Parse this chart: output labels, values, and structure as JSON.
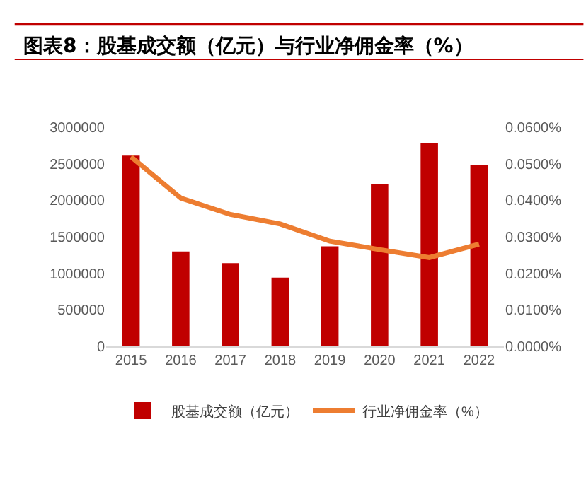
{
  "chart_data": {
    "type": "bar",
    "title": "图表8：股基成交额（亿元）与行业净佣金率（%）",
    "categories": [
      "2015",
      "2016",
      "2017",
      "2018",
      "2019",
      "2020",
      "2021",
      "2022"
    ],
    "series": [
      {
        "name": "股基成交额（亿元）",
        "color": "#c00000",
        "values": [
          2610000,
          1300000,
          1140000,
          940000,
          1370000,
          2220000,
          2780000,
          2480000
        ]
      },
      {
        "name": "行业净佣金率（%）",
        "type": "line",
        "axis": "y2",
        "color": "#ed7d31",
        "values": [
          0.0519,
          0.0406,
          0.0361,
          0.0335,
          0.0288,
          0.0265,
          0.0243,
          0.028
        ]
      }
    ],
    "ylim": [
      0,
      3000000
    ],
    "yticks": [
      0,
      500000,
      1000000,
      1500000,
      2000000,
      2500000,
      3000000
    ],
    "y2lim": [
      0,
      0.06
    ],
    "y2ticks": [
      {
        "value": 0,
        "label": "0.0000%"
      },
      {
        "value": 0.01,
        "label": "0.0100%"
      },
      {
        "value": 0.02,
        "label": "0.0200%"
      },
      {
        "value": 0.03,
        "label": "0.0300%"
      },
      {
        "value": 0.04,
        "label": "0.0400%"
      },
      {
        "value": 0.05,
        "label": "0.0500%"
      },
      {
        "value": 0.06,
        "label": "0.0600%"
      }
    ],
    "grid": false,
    "legend": "bottom",
    "marker": "none",
    "line_style": "solid"
  }
}
